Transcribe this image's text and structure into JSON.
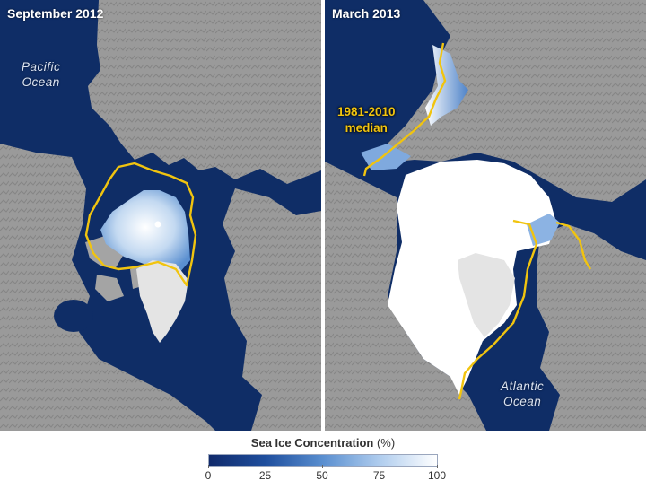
{
  "panels": [
    {
      "title": "September 2012",
      "ocean_labels": [
        {
          "lines": [
            "Pacific",
            "Ocean"
          ]
        }
      ]
    },
    {
      "title": "March 2013",
      "ocean_labels": [
        {
          "lines": [
            "Atlantic",
            "Ocean"
          ]
        }
      ],
      "median_label": {
        "lines": [
          "1981-2010",
          "median"
        ]
      }
    }
  ],
  "legend": {
    "title": "Sea Ice Concentration",
    "unit": "(%)",
    "ticks": [
      "0",
      "25",
      "50",
      "75",
      "100"
    ],
    "range": [
      0,
      100
    ]
  },
  "colors": {
    "ocean": "#0f2d66",
    "land": "#9b9b9b",
    "sea_ice": "#ffffff",
    "median_line": "#f1c40f",
    "greenland": "#e4e4e4"
  }
}
